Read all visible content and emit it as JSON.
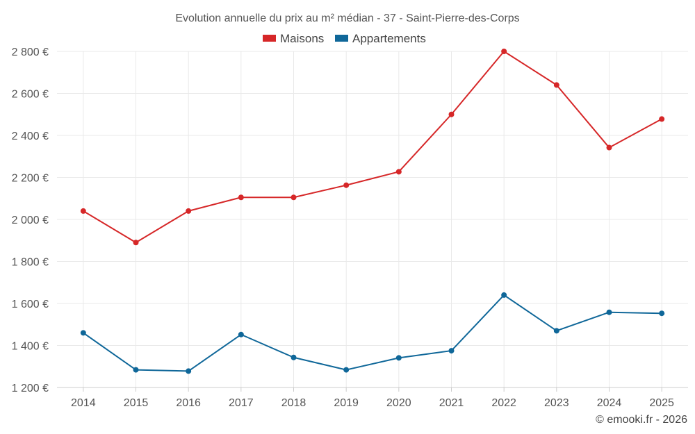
{
  "chart_data": {
    "type": "line",
    "title": "Evolution annuelle du prix au m² médian - 37 - Saint-Pierre-des-Corps",
    "categories": [
      "2014",
      "2015",
      "2016",
      "2017",
      "2018",
      "2019",
      "2020",
      "2021",
      "2022",
      "2023",
      "2024",
      "2025"
    ],
    "series": [
      {
        "name": "Maisons",
        "color": "#d62728",
        "values": [
          2040,
          1890,
          2040,
          2105,
          2105,
          2163,
          2227,
          2500,
          2800,
          2640,
          2342,
          2478
        ]
      },
      {
        "name": "Appartements",
        "color": "#0f6799",
        "values": [
          1460,
          1284,
          1278,
          1452,
          1343,
          1284,
          1341,
          1375,
          1640,
          1470,
          1558,
          1553
        ]
      }
    ],
    "ylim": [
      1200,
      2800
    ],
    "yticks": [
      1200,
      1400,
      1600,
      1800,
      2000,
      2200,
      2400,
      2600,
      2800
    ],
    "ytick_labels": [
      "1 200 €",
      "1 400 €",
      "1 600 €",
      "1 800 €",
      "2 000 €",
      "2 200 €",
      "2 400 €",
      "2 600 €",
      "2 800 €"
    ],
    "xlabel": "",
    "ylabel": "",
    "grid": true,
    "legend_position": "top-center"
  },
  "credit": "© emooki.fr - 2026"
}
